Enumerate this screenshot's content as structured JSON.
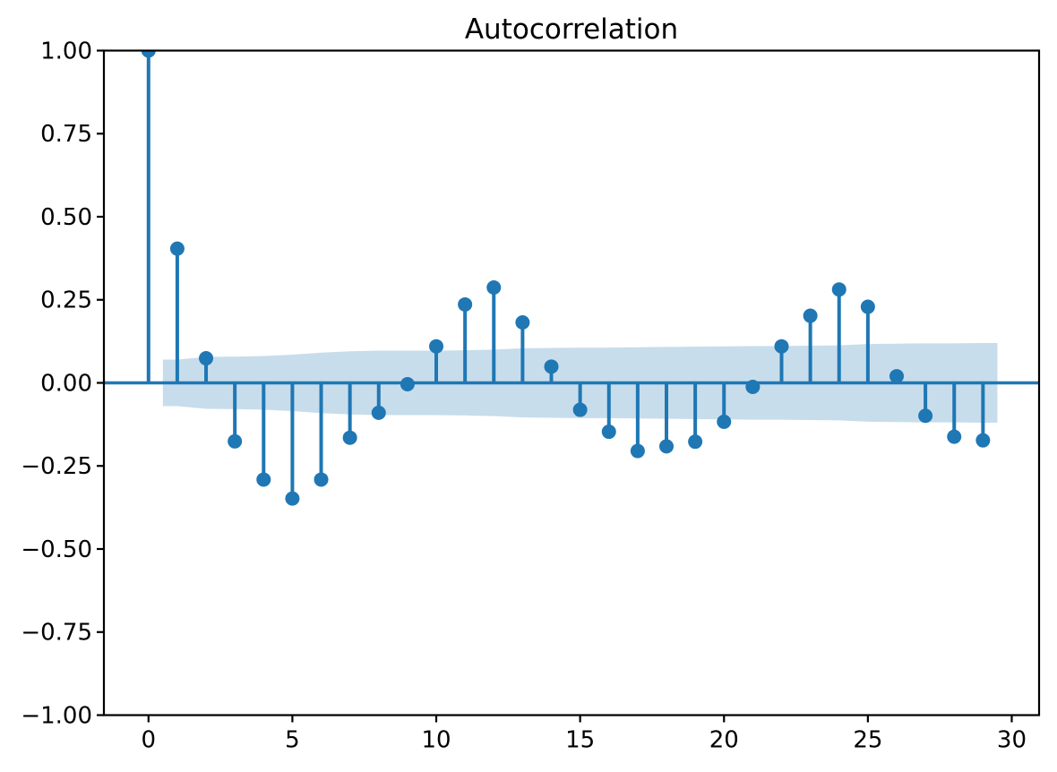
{
  "figure": {
    "title": "Autocorrelation"
  },
  "colors": {
    "series": "#1f77b4",
    "band_fill": "#1f77b4",
    "band_opacity": 0.25,
    "axis": "#000000",
    "text": "#000000",
    "background": "#ffffff"
  },
  "chart_data": {
    "type": "stem",
    "title": "Autocorrelation",
    "xlabel": "",
    "ylabel": "",
    "x": [
      0,
      1,
      2,
      3,
      4,
      5,
      6,
      7,
      8,
      9,
      10,
      11,
      12,
      13,
      14,
      15,
      16,
      17,
      18,
      19,
      20,
      21,
      22,
      23,
      24,
      25,
      26,
      27,
      28,
      29
    ],
    "values": [
      1.0,
      0.404,
      0.074,
      -0.176,
      -0.291,
      -0.348,
      -0.291,
      -0.165,
      -0.09,
      -0.004,
      0.11,
      0.236,
      0.287,
      0.182,
      0.049,
      -0.081,
      -0.147,
      -0.205,
      -0.191,
      -0.177,
      -0.117,
      -0.012,
      0.11,
      0.202,
      0.281,
      0.229,
      0.02,
      -0.099,
      -0.162,
      -0.173
    ],
    "xlim": [
      -1.55,
      30.95
    ],
    "ylim": [
      -1.0,
      1.0
    ],
    "xticks": {
      "values": [
        0,
        5,
        10,
        15,
        20,
        25,
        30
      ],
      "labels": [
        "0",
        "5",
        "10",
        "15",
        "20",
        "25",
        "30"
      ]
    },
    "yticks": {
      "values": [
        1.0,
        0.75,
        0.5,
        0.25,
        0.0,
        -0.25,
        -0.5,
        -0.75,
        -1.0
      ],
      "labels": [
        "1.00",
        "0.75",
        "0.50",
        "0.25",
        "0.00",
        "−0.25",
        "−0.50",
        "−0.75",
        "−1.00"
      ]
    },
    "grid": false,
    "legend": "none",
    "zero_line": true,
    "confidence_band": {
      "x": [
        0.5,
        1,
        2,
        3,
        4,
        5,
        6,
        7,
        8,
        9,
        10,
        11,
        12,
        13,
        14,
        15,
        16,
        17,
        18,
        19,
        20,
        21,
        22,
        23,
        24,
        25,
        26,
        27,
        28,
        29,
        29.5
      ],
      "upper": [
        0.07,
        0.07,
        0.078,
        0.079,
        0.081,
        0.085,
        0.091,
        0.095,
        0.097,
        0.097,
        0.097,
        0.098,
        0.1,
        0.104,
        0.105,
        0.106,
        0.106,
        0.107,
        0.108,
        0.109,
        0.11,
        0.111,
        0.111,
        0.112,
        0.113,
        0.117,
        0.118,
        0.119,
        0.119,
        0.12,
        0.12
      ],
      "lower": [
        -0.07,
        -0.07,
        -0.078,
        -0.079,
        -0.081,
        -0.085,
        -0.091,
        -0.095,
        -0.097,
        -0.097,
        -0.097,
        -0.098,
        -0.1,
        -0.104,
        -0.105,
        -0.106,
        -0.106,
        -0.107,
        -0.108,
        -0.109,
        -0.11,
        -0.111,
        -0.111,
        -0.112,
        -0.113,
        -0.117,
        -0.118,
        -0.119,
        -0.119,
        -0.12,
        -0.12
      ]
    }
  }
}
